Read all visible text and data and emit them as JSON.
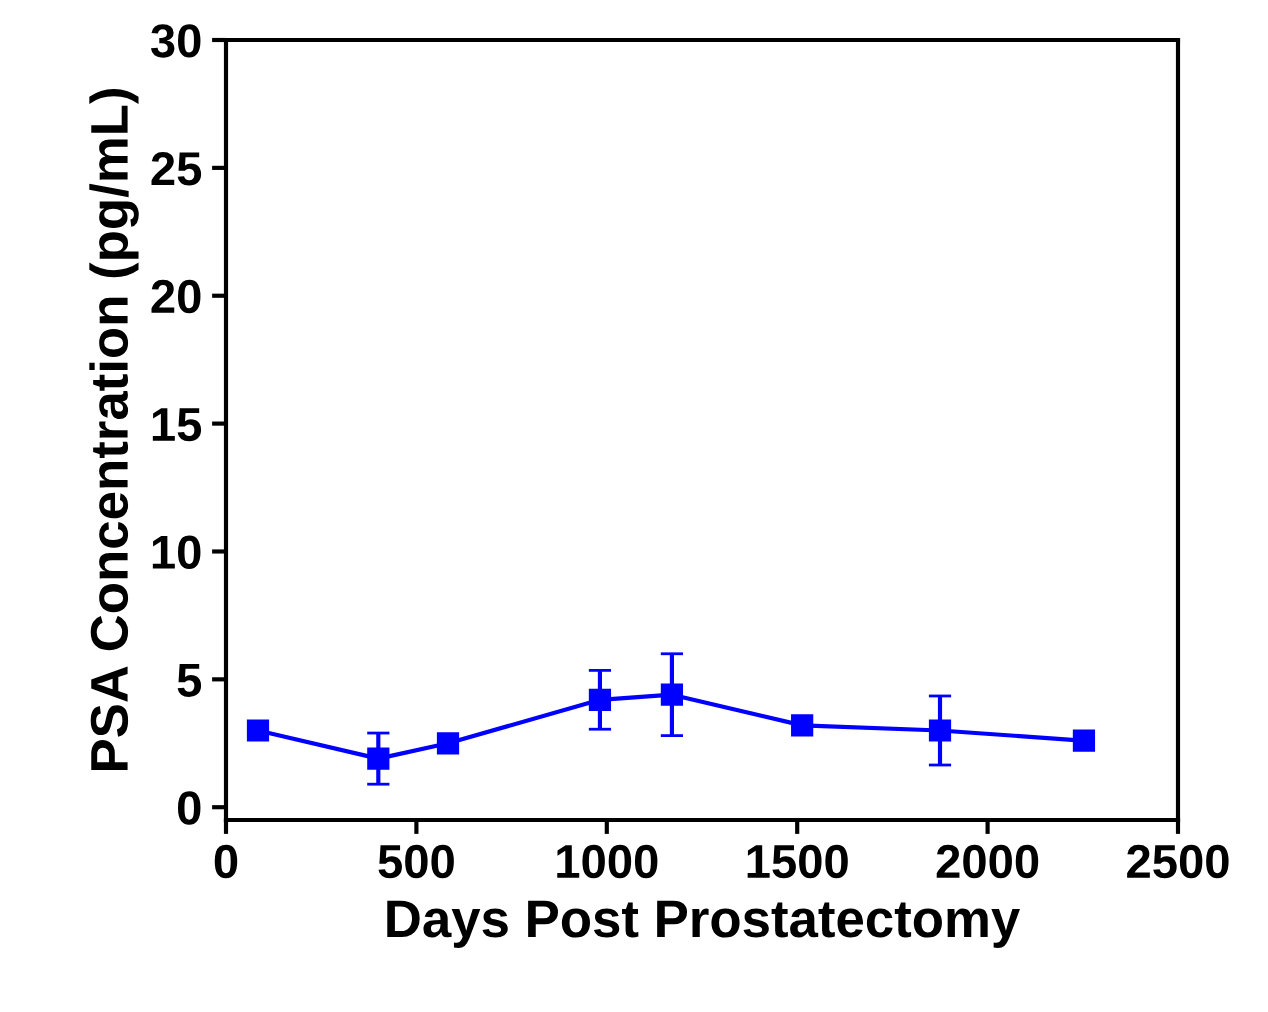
{
  "chart_data": {
    "type": "line",
    "xlabel": "Days Post Prostatectomy",
    "ylabel": "PSA Concentration (pg/mL)",
    "x": [
      84,
      400,
      583,
      982,
      1171,
      1513,
      1875,
      2253
    ],
    "series": [
      {
        "color": "#0000ff",
        "values": [
          3.0,
          1.9,
          2.5,
          4.2,
          4.4,
          3.2,
          3.0,
          2.6
        ],
        "errors": [
          null,
          1.0,
          null,
          1.15,
          1.6,
          null,
          1.35,
          null
        ]
      }
    ],
    "xlim": [
      0,
      2500
    ],
    "xticks": [
      0,
      500,
      1000,
      1500,
      2000,
      2500
    ],
    "ylim": [
      -0.5,
      30
    ],
    "yticks": [
      0,
      5,
      10,
      15,
      20,
      25,
      30
    ],
    "marker": "square",
    "line_style": "solid",
    "grid": false
  }
}
